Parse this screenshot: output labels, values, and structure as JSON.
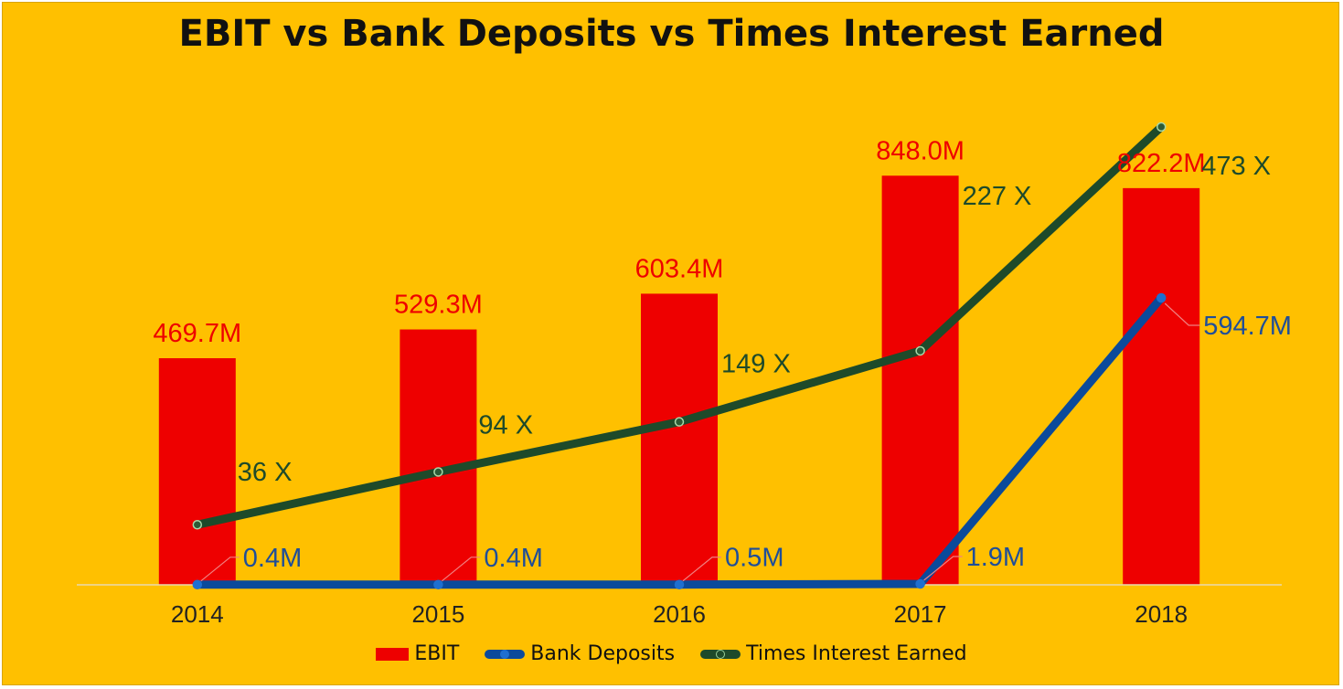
{
  "chart_data": {
    "type": "bar",
    "title": "EBIT vs Bank Deposits vs Times Interest Earned",
    "categories": [
      "2014",
      "2015",
      "2016",
      "2017",
      "2018"
    ],
    "series": [
      {
        "name": "EBIT",
        "kind": "bar",
        "color": "#ee0000",
        "values": [
          469.7,
          529.3,
          603.4,
          848.0,
          822.2
        ],
        "labels": [
          "469.7M",
          "529.3M",
          "603.4M",
          "848.0M",
          "822.2M"
        ]
      },
      {
        "name": "Bank Deposits",
        "kind": "line",
        "color": "#0b4a9b",
        "values": [
          0.4,
          0.4,
          0.5,
          1.9,
          594.7
        ],
        "labels": [
          "0.4M",
          "0.4M",
          "0.5M",
          "1.9M",
          "594.7M"
        ]
      },
      {
        "name": "Times Interest Earned",
        "kind": "line",
        "color": "#1e4a2a",
        "values": [
          36,
          94,
          149,
          227,
          473
        ],
        "labels": [
          "36 X",
          "94 X",
          "149 X",
          "227 X",
          "473 X"
        ]
      }
    ],
    "ylim": [
      0,
      1000
    ],
    "ylim_secondary": [
      -30,
      500
    ],
    "grid": false,
    "legend": "bottom",
    "colors": {
      "background": "#ffc000",
      "bar_label": "#ee0000",
      "deposit_label": "#1f4e99",
      "tie_label": "#1e4a2a"
    }
  }
}
